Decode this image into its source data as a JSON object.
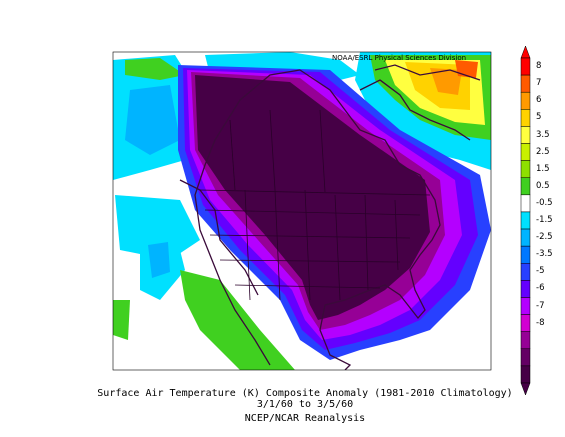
{
  "credit": "NOAA/ESRL Physical Sciences Division",
  "caption": {
    "line1": "Surface Air Temperature (K) Composite Anomaly (1981-2010 Climatology)",
    "line2": "3/1/60  to 3/5/60",
    "line3": "NCEP/NCAR Reanalysis"
  },
  "colorbar": {
    "labels": [
      "8",
      "7",
      "6",
      "5",
      "3.5",
      "2.5",
      "1.5",
      "0.5",
      "-0.5",
      "-1.5",
      "-2.5",
      "-3.5",
      "-5",
      "-6",
      "-7",
      "-8"
    ],
    "colors": [
      "#ff0000",
      "#ff5a00",
      "#ff9a00",
      "#ffd200",
      "#ffff40",
      "#c8f000",
      "#8ee000",
      "#40d020",
      "#ffffff",
      "#00e0ff",
      "#00b4ff",
      "#0078ff",
      "#2840ff",
      "#6400ff",
      "#b400ff",
      "#d200d2",
      "#960096",
      "#640064",
      "#460046"
    ]
  }
}
